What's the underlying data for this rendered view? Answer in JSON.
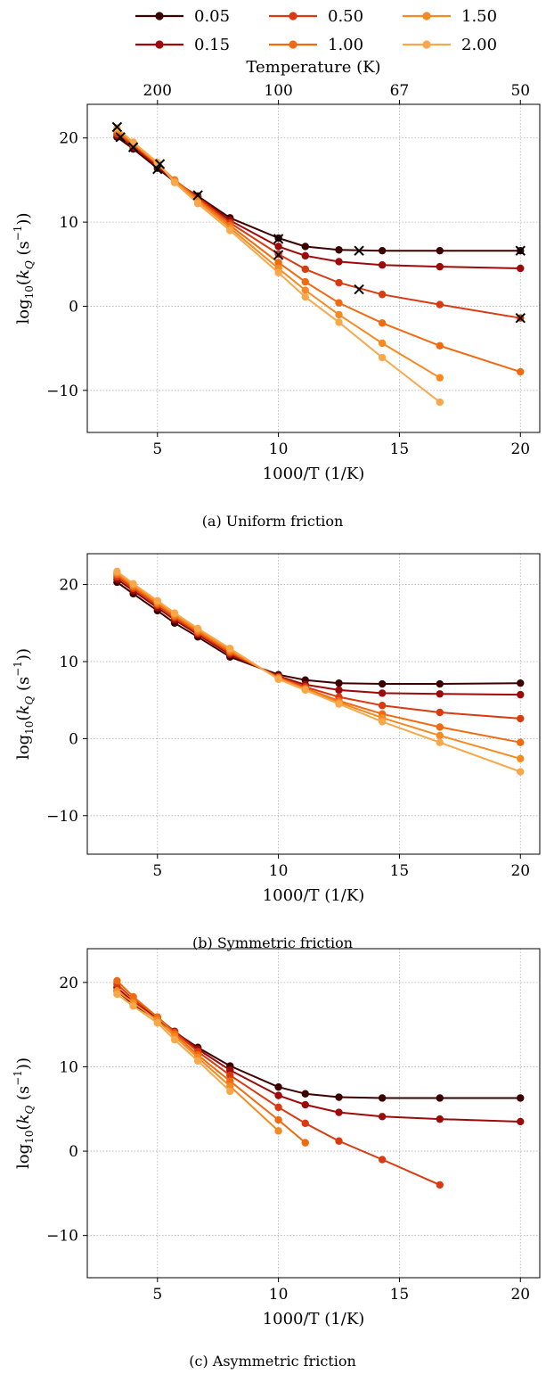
{
  "legend": {
    "entries": [
      {
        "label": "0.05",
        "color": "#3b0000"
      },
      {
        "label": "0.15",
        "color": "#9e0a0a"
      },
      {
        "label": "0.50",
        "color": "#d93a0f"
      },
      {
        "label": "1.00",
        "color": "#f06a10"
      },
      {
        "label": "1.50",
        "color": "#f58a20"
      },
      {
        "label": "2.00",
        "color": "#f8a84a"
      }
    ]
  },
  "chart_data": [
    {
      "type": "line",
      "caption": "(a) Uniform friction",
      "xlabel": "1000/T (1/K)",
      "ylabel_parts": {
        "log": "log",
        "sub": "10",
        "open": "(",
        "k": "k",
        "ksub": "Q",
        "unit_open": " (s",
        "sup": "−1",
        "close": "))"
      },
      "top_axis_label": "Temperature (K)",
      "top_ticks": [
        {
          "x": 5,
          "label": "200"
        },
        {
          "x": 10,
          "label": "100"
        },
        {
          "x": 15,
          "label": "67"
        },
        {
          "x": 20,
          "label": "50"
        }
      ],
      "xlim": [
        2.1,
        20.8
      ],
      "ylim": [
        -15,
        24
      ],
      "xticks": [
        5,
        10,
        15,
        20
      ],
      "yticks": [
        20,
        10,
        0,
        -10
      ],
      "ytick_labels": [
        "20",
        "10",
        "0",
        "−10"
      ],
      "grid": true,
      "series": [
        {
          "x": [
            3.33,
            4,
            5,
            5.71,
            6.67,
            8,
            10,
            11.11,
            12.5,
            14.29,
            16.67,
            20
          ],
          "y": [
            20.1,
            18.7,
            16.4,
            14.8,
            13.1,
            10.5,
            8.1,
            7.1,
            6.7,
            6.6,
            6.6,
            6.6
          ]
        },
        {
          "x": [
            3.33,
            4,
            5,
            5.71,
            6.67,
            8,
            10,
            11.11,
            12.5,
            14.29,
            16.67,
            20
          ],
          "y": [
            20.3,
            18.9,
            16.6,
            14.9,
            13.0,
            10.2,
            7.1,
            6.0,
            5.3,
            4.9,
            4.7,
            4.5
          ]
        },
        {
          "x": [
            3.33,
            4,
            5,
            5.71,
            6.67,
            8,
            10,
            11.11,
            12.5,
            14.29,
            16.67,
            20
          ],
          "y": [
            20.5,
            19.1,
            16.8,
            15.0,
            12.9,
            9.9,
            6.2,
            4.4,
            2.8,
            1.4,
            0.2,
            -1.4
          ]
        },
        {
          "x": [
            3.33,
            4,
            5,
            5.71,
            6.67,
            8,
            10,
            11.11,
            12.5,
            14.29,
            16.67,
            20
          ],
          "y": [
            20.8,
            19.3,
            16.9,
            15.0,
            12.7,
            9.6,
            5.2,
            2.9,
            0.4,
            -2.0,
            -4.7,
            -7.8
          ]
        },
        {
          "x": [
            3.33,
            4,
            5,
            5.71,
            6.67,
            8,
            10,
            11.11,
            12.5,
            14.29,
            16.67
          ],
          "y": [
            21.0,
            19.4,
            17.0,
            14.9,
            12.5,
            9.3,
            4.5,
            1.9,
            -1.0,
            -4.4,
            -8.5
          ]
        },
        {
          "x": [
            3.33,
            4,
            5,
            5.71,
            6.67,
            8,
            10,
            11.11,
            12.5,
            14.29,
            16.67
          ],
          "y": [
            21.2,
            19.5,
            17.1,
            14.7,
            12.2,
            9.0,
            4.0,
            1.1,
            -1.9,
            -6.1,
            -11.4
          ]
        }
      ],
      "markers_x": {
        "x": [
          3.33,
          3.47,
          4,
          5,
          5.1,
          6.67,
          10,
          10,
          13.33,
          13.33,
          20,
          20
        ],
        "y": [
          21.3,
          20.1,
          18.9,
          16.3,
          16.9,
          13.2,
          8.0,
          6.1,
          6.6,
          2.0,
          6.6,
          -1.4
        ]
      }
    },
    {
      "type": "line",
      "caption": "(b) Symmetric friction",
      "xlabel": "1000/T (1/K)",
      "ylabel_parts": {
        "log": "log",
        "sub": "10",
        "open": "(",
        "k": "k",
        "ksub": "Q",
        "unit_open": " (s",
        "sup": "−1",
        "close": "))"
      },
      "xlim": [
        2.1,
        20.8
      ],
      "ylim": [
        -15,
        24
      ],
      "xticks": [
        5,
        10,
        15,
        20
      ],
      "yticks": [
        20,
        10,
        0,
        -10
      ],
      "ytick_labels": [
        "20",
        "10",
        "0",
        "−10"
      ],
      "grid": true,
      "series": [
        {
          "x": [
            3.33,
            4,
            5,
            5.71,
            6.67,
            8,
            10,
            11.11,
            12.5,
            14.29,
            16.67,
            20
          ],
          "y": [
            20.3,
            18.8,
            16.6,
            15.0,
            13.2,
            10.6,
            8.3,
            7.6,
            7.2,
            7.1,
            7.1,
            7.2
          ]
        },
        {
          "x": [
            3.33,
            4,
            5,
            5.71,
            6.67,
            8,
            10,
            11.11,
            12.5,
            14.29,
            16.67,
            20
          ],
          "y": [
            20.7,
            19.2,
            17.0,
            15.4,
            13.5,
            10.9,
            8.1,
            7.0,
            6.3,
            5.9,
            5.8,
            5.7
          ]
        },
        {
          "x": [
            3.33,
            4,
            5,
            5.71,
            6.67,
            8,
            10,
            11.11,
            12.5,
            14.29,
            16.67,
            20
          ],
          "y": [
            21.0,
            19.5,
            17.3,
            15.7,
            13.7,
            11.1,
            8.0,
            6.7,
            5.4,
            4.3,
            3.4,
            2.6
          ]
        },
        {
          "x": [
            3.33,
            4,
            5,
            5.71,
            6.67,
            8,
            10,
            11.11,
            12.5,
            14.29,
            16.67,
            20
          ],
          "y": [
            21.3,
            19.7,
            17.5,
            15.9,
            13.9,
            11.3,
            7.9,
            6.5,
            4.9,
            3.2,
            1.5,
            -0.5
          ]
        },
        {
          "x": [
            3.33,
            4,
            5,
            5.71,
            6.67,
            8,
            10,
            11.11,
            12.5,
            14.29,
            16.67,
            20
          ],
          "y": [
            21.5,
            19.9,
            17.7,
            16.1,
            14.1,
            11.5,
            7.8,
            6.4,
            4.7,
            2.7,
            0.4,
            -2.6
          ]
        },
        {
          "x": [
            3.33,
            4,
            5,
            5.71,
            6.67,
            8,
            10,
            11.11,
            12.5,
            14.29,
            16.67,
            20
          ],
          "y": [
            21.7,
            20.1,
            17.9,
            16.3,
            14.3,
            11.7,
            7.7,
            6.3,
            4.5,
            2.2,
            -0.5,
            -4.3
          ]
        }
      ]
    },
    {
      "type": "line",
      "caption": "(c) Asymmetric friction",
      "xlabel": "1000/T (1/K)",
      "ylabel_parts": {
        "log": "log",
        "sub": "10",
        "open": "(",
        "k": "k",
        "ksub": "Q",
        "unit_open": " (s",
        "sup": "−1",
        "close": "))"
      },
      "xlim": [
        2.1,
        20.8
      ],
      "ylim": [
        -15,
        24
      ],
      "xticks": [
        5,
        10,
        15,
        20
      ],
      "yticks": [
        20,
        10,
        0,
        -10
      ],
      "ytick_labels": [
        "20",
        "10",
        "0",
        "−10"
      ],
      "grid": true,
      "series": [
        {
          "x": [
            3.33,
            4,
            5,
            5.71,
            6.67,
            8,
            10,
            11.11,
            12.5,
            14.29,
            16.67,
            20
          ],
          "y": [
            19.0,
            17.4,
            15.6,
            14.1,
            12.3,
            10.1,
            7.6,
            6.8,
            6.4,
            6.3,
            6.3,
            6.3
          ]
        },
        {
          "x": [
            3.33,
            4,
            5,
            5.71,
            6.67,
            8,
            10,
            11.11,
            12.5,
            14.29,
            16.67,
            20
          ],
          "y": [
            19.4,
            17.7,
            15.8,
            14.2,
            12.1,
            9.6,
            6.6,
            5.5,
            4.6,
            4.1,
            3.8,
            3.5
          ]
        },
        {
          "x": [
            3.33,
            4,
            5,
            5.71,
            6.67,
            8,
            10,
            11.11,
            12.5,
            14.29,
            16.67
          ],
          "y": [
            19.8,
            18.0,
            15.9,
            14.1,
            11.8,
            9.0,
            5.2,
            3.3,
            1.2,
            -1.0,
            -4.0
          ]
        },
        {
          "x": [
            3.33,
            4,
            5,
            5.71,
            6.67,
            8,
            10,
            11.11
          ],
          "y": [
            20.2,
            18.3,
            15.9,
            13.9,
            11.4,
            8.3,
            3.7,
            1.0
          ]
        },
        {
          "x": [
            3.33,
            4,
            5,
            5.71,
            6.67,
            8,
            10
          ],
          "y": [
            19.0,
            17.6,
            15.5,
            13.6,
            11.1,
            7.7,
            2.4
          ]
        },
        {
          "x": [
            3.33,
            4,
            5,
            5.71,
            6.67,
            8
          ],
          "y": [
            18.6,
            17.2,
            15.2,
            13.2,
            10.7,
            7.1
          ]
        }
      ]
    }
  ]
}
